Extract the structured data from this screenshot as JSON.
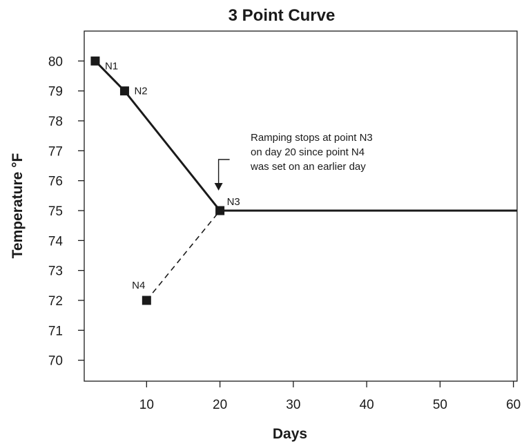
{
  "chart_data": {
    "type": "line",
    "title": "3 Point Curve",
    "xlabel": "Days",
    "ylabel": "Temperature °F",
    "xlim": [
      1.5,
      60.5
    ],
    "ylim": [
      69.3,
      81
    ],
    "x_ticks": [
      10,
      20,
      30,
      40,
      50,
      60
    ],
    "y_ticks": [
      70,
      71,
      72,
      73,
      74,
      75,
      76,
      77,
      78,
      79,
      80
    ],
    "grid": false,
    "points": [
      {
        "label": "N1",
        "x": 3,
        "y": 80
      },
      {
        "label": "N2",
        "x": 7,
        "y": 79
      },
      {
        "label": "N3",
        "x": 20,
        "y": 75
      },
      {
        "label": "N4",
        "x": 10,
        "y": 72
      }
    ],
    "series": [
      {
        "style": "solid",
        "x": [
          3,
          7,
          20,
          60.5
        ],
        "y": [
          80,
          79,
          75,
          75
        ]
      },
      {
        "style": "dashed",
        "x": [
          10,
          20
        ],
        "y": [
          72,
          75
        ]
      }
    ],
    "annotation": {
      "lines": [
        "Ramping stops at point N3",
        "on day 20 since point N4",
        "was set on an earlier day"
      ],
      "target_x": 20,
      "target_y": 75
    },
    "colors": {
      "line": "#1a1a1a",
      "marker": "#1a1a1a"
    }
  }
}
